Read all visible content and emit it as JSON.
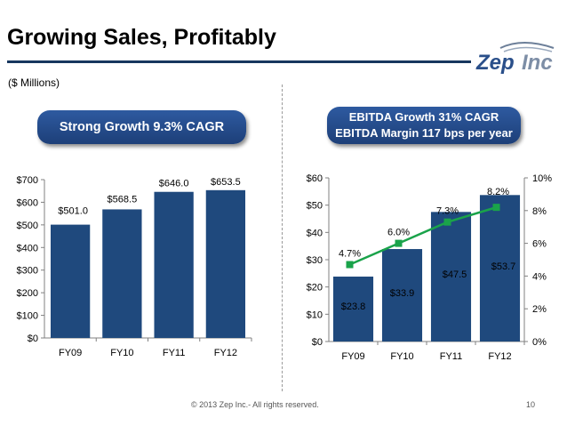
{
  "slide": {
    "title": "Growing Sales, Profitably",
    "units": "($ Millions)",
    "footer": "© 2013 Zep Inc.- All rights reserved.",
    "page_number": "10",
    "accent_color": "#1f497d",
    "logo": {
      "text_main": "Zep",
      "text_tail": "Inc",
      "icon": "zepinc-logo"
    }
  },
  "callouts": {
    "left": "Strong Growth 9.3% CAGR",
    "right_line1": "EBITDA Growth 31% CAGR",
    "right_line2": "EBITDA Margin 117 bps per year"
  },
  "chart_data": [
    {
      "type": "bar",
      "categories": [
        "FY09",
        "FY10",
        "FY11",
        "FY12"
      ],
      "values": [
        501.0,
        568.5,
        646.0,
        653.5
      ],
      "data_labels": [
        "$501.0",
        "$568.5",
        "$646.0",
        "$653.5"
      ],
      "ylim": [
        0,
        700
      ],
      "y_ticks": [
        0,
        100,
        200,
        300,
        400,
        500,
        600,
        700
      ],
      "y_tick_labels": [
        "$0",
        "$100",
        "$200",
        "$300",
        "$400",
        "$500",
        "$600",
        "$700"
      ],
      "bar_color": "#1f497d",
      "grid": false
    },
    {
      "type": "bar",
      "categories": [
        "FY09",
        "FY10",
        "FY11",
        "FY12"
      ],
      "values": [
        23.8,
        33.9,
        47.5,
        53.7
      ],
      "data_labels": [
        "$23.8",
        "$33.9",
        "$47.5",
        "$53.7"
      ],
      "ylim": [
        0,
        60
      ],
      "y_ticks": [
        0,
        10,
        20,
        30,
        40,
        50,
        60
      ],
      "y_tick_labels": [
        "$0",
        "$10",
        "$20",
        "$30",
        "$40",
        "$50",
        "$60"
      ],
      "bar_color": "#1f497d",
      "bar_label_color": "#ffffff",
      "secondary": {
        "type": "line",
        "values": [
          4.7,
          6.0,
          7.3,
          8.2
        ],
        "data_labels": [
          "4.7%",
          "6.0%",
          "7.3%",
          "8.2%"
        ],
        "ylim": [
          0,
          10
        ],
        "y_ticks": [
          0,
          2,
          4,
          6,
          8,
          10
        ],
        "y_tick_labels": [
          "0%",
          "2%",
          "4%",
          "6%",
          "8%",
          "10%"
        ],
        "line_color": "#1aa34a",
        "marker": "square"
      },
      "grid": false
    }
  ]
}
